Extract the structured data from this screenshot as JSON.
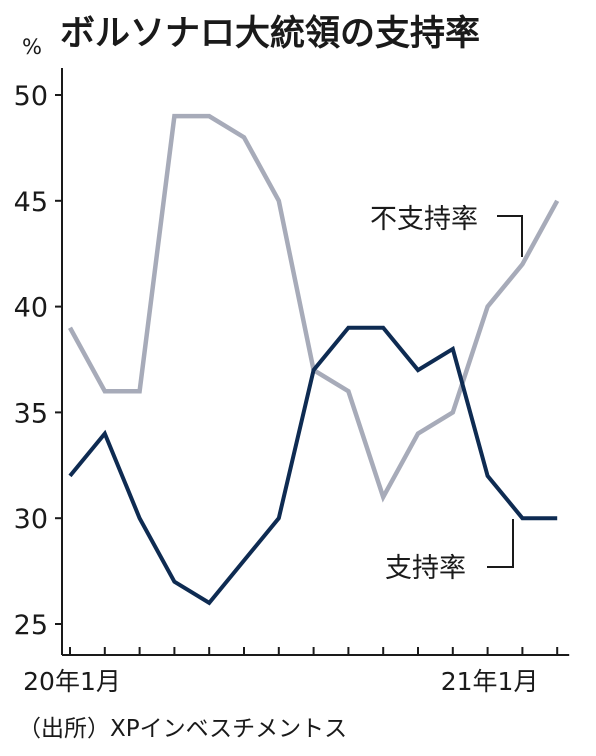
{
  "chart_data": {
    "type": "line",
    "title": "ボルソナロ大統領の支持率",
    "unit": "%",
    "ylim": [
      25,
      50
    ],
    "yticks": [
      25,
      30,
      35,
      40,
      45,
      50
    ],
    "x_tick_labels": [
      {
        "index": 0,
        "label": "20年1月"
      },
      {
        "index": 12,
        "label": "21年1月"
      }
    ],
    "series": [
      {
        "name": "不支持率",
        "color": "#a7abb9",
        "values": [
          39,
          36,
          36,
          49,
          49,
          48,
          45,
          37,
          36,
          31,
          34,
          35,
          40,
          42,
          45
        ]
      },
      {
        "name": "支持率",
        "color": "#0e2b52",
        "values": [
          32,
          34,
          30,
          27,
          26,
          28,
          30,
          37,
          39,
          39,
          37,
          38,
          32,
          30,
          30
        ]
      }
    ],
    "grid": false,
    "source": "（出所）XPインベスチメントス"
  }
}
